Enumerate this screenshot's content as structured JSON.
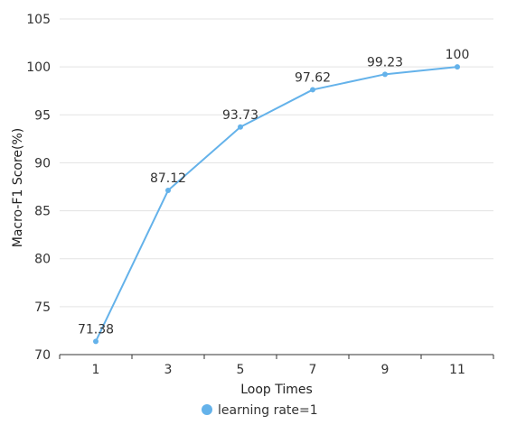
{
  "chart_data": {
    "type": "line",
    "x": [
      1,
      3,
      5,
      7,
      9,
      11
    ],
    "series": [
      {
        "name": "learning rate=1",
        "values": [
          71.38,
          87.12,
          93.73,
          97.62,
          99.23,
          100
        ],
        "labels": [
          "71.38",
          "87.12",
          "93.73",
          "97.62",
          "99.23",
          "100"
        ]
      }
    ],
    "x_tick_labels": [
      "1",
      "3",
      "5",
      "7",
      "9",
      "11"
    ],
    "y_ticks": [
      70,
      75,
      80,
      85,
      90,
      95,
      100,
      105
    ],
    "y_tick_labels": [
      "70",
      "75",
      "80",
      "85",
      "90",
      "95",
      "100",
      "105"
    ],
    "xlabel": "Loop Times",
    "ylabel": "Macro-F1 Score(%)",
    "ylim": [
      70,
      105
    ],
    "grid": "horizontal",
    "legend_position": "bottom-center",
    "colors": {
      "series": "#64b2ea",
      "grid": "#e3e3e3",
      "axis": "#333333"
    }
  }
}
